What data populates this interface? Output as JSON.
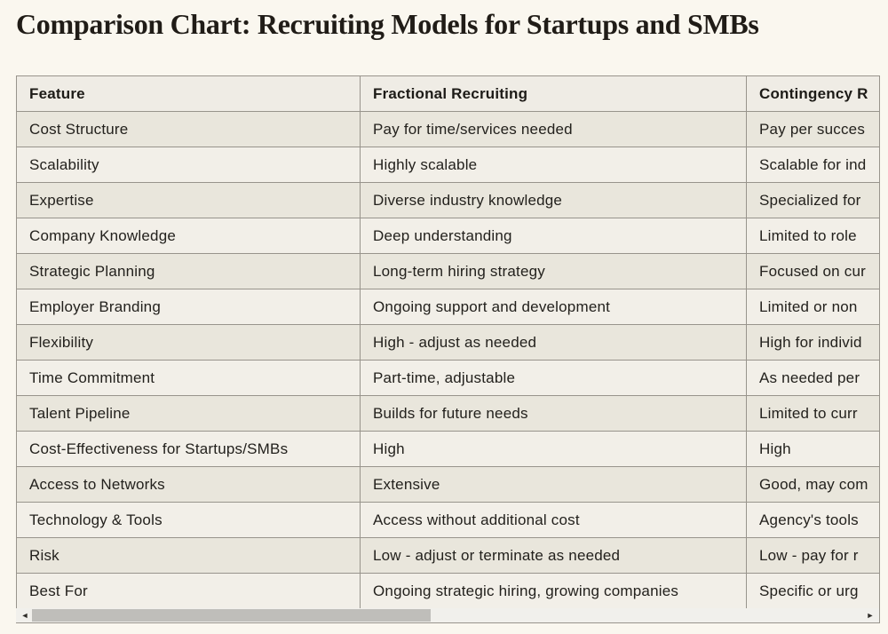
{
  "page": {
    "title": "Comparison Chart: Recruiting Models for Startups and SMBs",
    "background_color": "#faf7ef",
    "text_color": "#23211d",
    "border_color": "#98948c"
  },
  "table": {
    "headers": [
      "Feature",
      "Fractional Recruiting",
      "Contingency R"
    ],
    "rows": [
      [
        "Cost Structure",
        "Pay for time/services needed",
        "Pay per succes"
      ],
      [
        "Scalability",
        "Highly scalable",
        "Scalable for ind"
      ],
      [
        "Expertise",
        "Diverse industry knowledge",
        "Specialized for"
      ],
      [
        "Company Knowledge",
        "Deep understanding",
        "Limited to role"
      ],
      [
        "Strategic Planning",
        "Long-term hiring strategy",
        "Focused on cur"
      ],
      [
        "Employer Branding",
        "Ongoing support and development",
        "Limited or non"
      ],
      [
        "Flexibility",
        "High - adjust as needed",
        "High for individ"
      ],
      [
        "Time Commitment",
        "Part-time, adjustable",
        "As needed per"
      ],
      [
        "Talent Pipeline",
        "Builds for future needs",
        "Limited to curr"
      ],
      [
        "Cost-Effectiveness for Startups/SMBs",
        "High",
        "High"
      ],
      [
        "Access to Networks",
        "Extensive",
        "Good, may com"
      ],
      [
        "Technology & Tools",
        "Access without additional cost",
        "Agency's tools"
      ],
      [
        "Risk",
        "Low - adjust or terminate as needed",
        "Low - pay for r"
      ],
      [
        "Best For",
        "Ongoing strategic hiring, growing companies",
        "Specific or urg"
      ]
    ],
    "colors": {
      "header_bg": "#efece5",
      "row_odd_bg": "#e9e6dc",
      "row_even_bg": "#f2efe8"
    }
  },
  "scrollbar": {
    "left_arrow": "◄",
    "right_arrow": "►",
    "thumb_color": "#bfbeba",
    "track_color": "#f1f0ec"
  },
  "chart_data": {
    "type": "table",
    "title": "Comparison Chart: Recruiting Models for Startups and SMBs",
    "columns": [
      "Feature",
      "Fractional Recruiting",
      "Contingency R"
    ],
    "rows": [
      [
        "Cost Structure",
        "Pay for time/services needed",
        "Pay per succes"
      ],
      [
        "Scalability",
        "Highly scalable",
        "Scalable for ind"
      ],
      [
        "Expertise",
        "Diverse industry knowledge",
        "Specialized for"
      ],
      [
        "Company Knowledge",
        "Deep understanding",
        "Limited to role"
      ],
      [
        "Strategic Planning",
        "Long-term hiring strategy",
        "Focused on cur"
      ],
      [
        "Employer Branding",
        "Ongoing support and development",
        "Limited or non"
      ],
      [
        "Flexibility",
        "High - adjust as needed",
        "High for individ"
      ],
      [
        "Time Commitment",
        "Part-time, adjustable",
        "As needed per"
      ],
      [
        "Talent Pipeline",
        "Builds for future needs",
        "Limited to curr"
      ],
      [
        "Cost-Effectiveness for Startups/SMBs",
        "High",
        "High"
      ],
      [
        "Access to Networks",
        "Extensive",
        "Good, may com"
      ],
      [
        "Technology & Tools",
        "Access without additional cost",
        "Agency's tools"
      ],
      [
        "Risk",
        "Low - adjust or terminate as needed",
        "Low - pay for r"
      ],
      [
        "Best For",
        "Ongoing strategic hiring, growing companies",
        "Specific or urg"
      ]
    ],
    "layout_hints": {
      "third_column_clipped_by_horizontal_scroll": true,
      "alternating_row_shading": true
    }
  }
}
